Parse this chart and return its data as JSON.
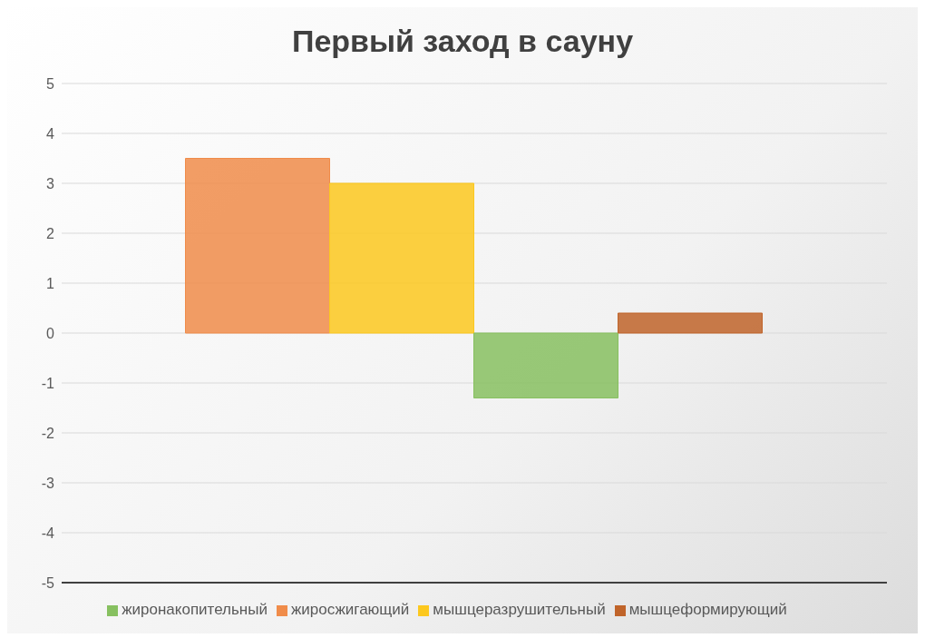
{
  "chart_data": {
    "type": "bar",
    "title": "Первый заход в сауну",
    "categories": [
      null
    ],
    "series": [
      {
        "name": "жиросжигающий",
        "color": "#f08c4a",
        "values": [
          3.5
        ]
      },
      {
        "name": "мышцеразрушительный",
        "color": "#fcc81e",
        "values": [
          3
        ]
      },
      {
        "name": "жиронакопительный",
        "color": "#87c060",
        "values": [
          -1.3
        ]
      },
      {
        "name": "мышцеформирующий",
        "color": "#c0642a",
        "values": [
          0.4
        ]
      }
    ],
    "ylim": [
      -5,
      5
    ],
    "yticks": [
      -5,
      -4,
      -3,
      -2,
      -1,
      0,
      1,
      2,
      3,
      4,
      5
    ],
    "grid": "y",
    "legend": "bottom"
  }
}
